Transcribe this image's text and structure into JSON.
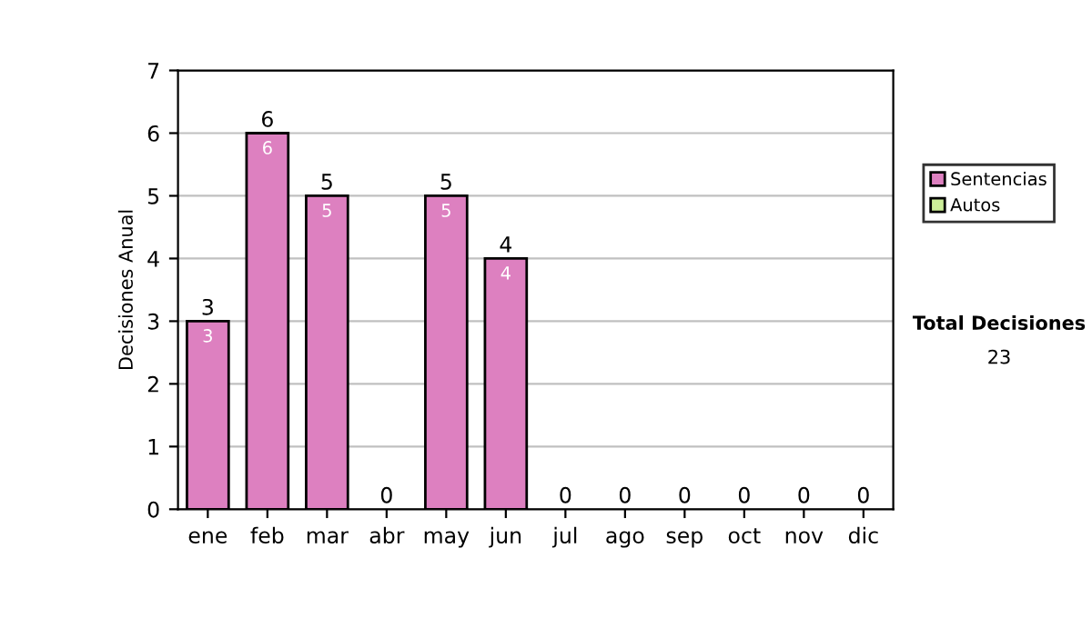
{
  "chart_data": {
    "type": "bar",
    "stacked": true,
    "ylabel": "Decisiones Anual",
    "categories": [
      "ene",
      "feb",
      "mar",
      "abr",
      "may",
      "jun",
      "jul",
      "ago",
      "sep",
      "oct",
      "nov",
      "dic"
    ],
    "series": [
      {
        "name": "Sentencias",
        "color": "#dd80c0",
        "values": [
          3,
          6,
          5,
          0,
          5,
          4,
          0,
          0,
          0,
          0,
          0,
          0
        ],
        "value_labels": [
          "3",
          "6",
          "5",
          null,
          "5",
          "4",
          null,
          null,
          null,
          null,
          null,
          null
        ]
      },
      {
        "name": "Autos",
        "color": "#ccee99",
        "values": [
          0,
          0,
          0,
          0,
          0,
          0,
          0,
          0,
          0,
          0,
          0,
          0
        ]
      }
    ],
    "totals": [
      "3",
      "6",
      "5",
      "0",
      "5",
      "4",
      "0",
      "0",
      "0",
      "0",
      "0",
      "0"
    ],
    "ylim": [
      0,
      7
    ],
    "yticks": [
      0,
      1,
      2,
      3,
      4,
      5,
      6,
      7
    ],
    "grid": "y",
    "legend": "right",
    "annotations": [
      "Total Decisiones",
      "23"
    ]
  }
}
